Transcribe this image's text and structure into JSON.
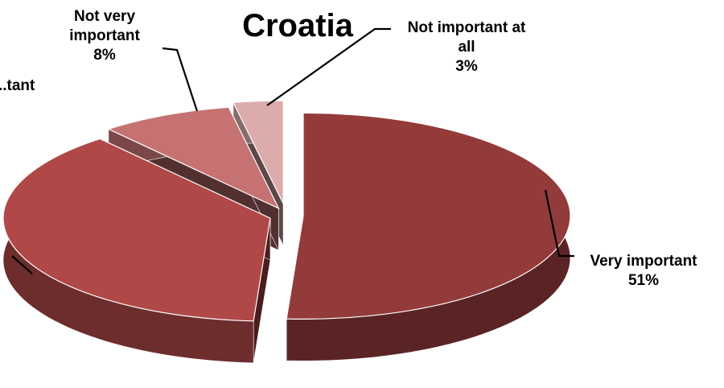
{
  "chart_data": {
    "type": "pie",
    "title": "Croatia",
    "slices": [
      {
        "category_lines": [
          "Very important"
        ],
        "value": 51,
        "value_label": "51%",
        "color": "#933a3a"
      },
      {
        "category_lines": [
          "...tant"
        ],
        "value": 38,
        "value_label": "",
        "color": "#b04848"
      },
      {
        "category_lines": [
          "Not very",
          "important"
        ],
        "value": 8,
        "value_label": "8%",
        "color": "#c67272"
      },
      {
        "category_lines": [
          "Not important at",
          "all"
        ],
        "value": 3,
        "value_label": "3%",
        "color": "#dcabab"
      }
    ],
    "legend": "none",
    "style": "3d-exploded"
  }
}
